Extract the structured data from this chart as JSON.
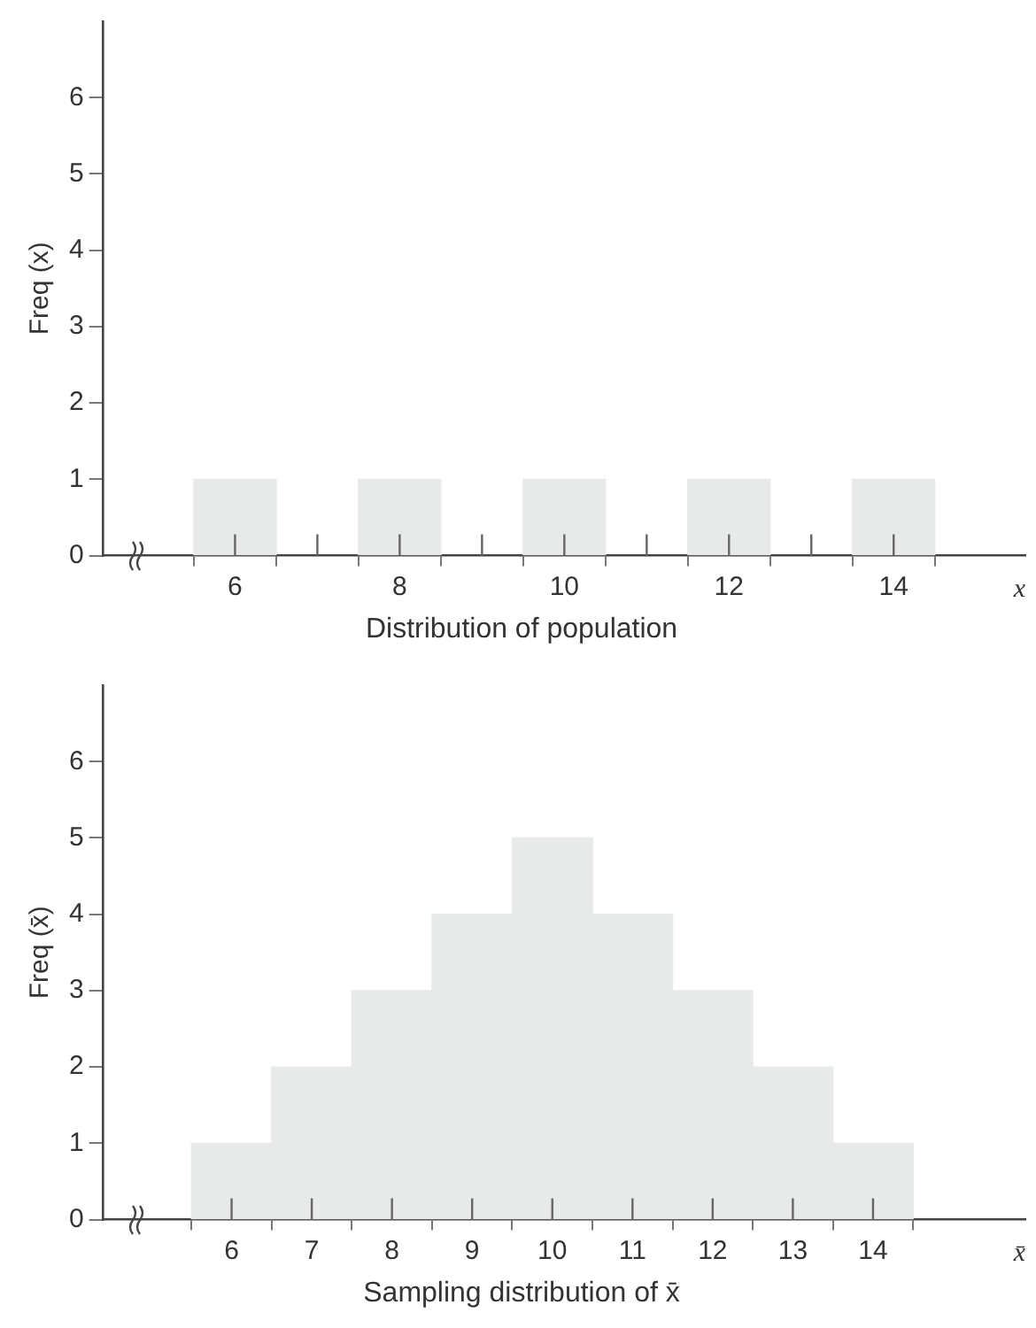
{
  "chart_data": [
    {
      "type": "bar",
      "title": "Distribution of population",
      "xlabel": "x",
      "ylabel": "Freq (x)",
      "x": [
        6,
        8,
        10,
        12,
        14
      ],
      "values": [
        1,
        1,
        1,
        1,
        1
      ],
      "color": "#e8eaea",
      "xlim": [
        4.4,
        15.6
      ],
      "xticks": [
        6,
        {
          "value": 7,
          "label": null
        },
        8,
        {
          "value": 9,
          "label": null
        },
        10,
        {
          "value": 11,
          "label": null
        },
        12,
        {
          "value": 13,
          "label": null
        },
        14
      ],
      "ylim": [
        0,
        7
      ],
      "yticks": [
        0,
        1,
        2,
        3,
        4,
        5,
        6
      ],
      "grid": false,
      "legend": false
    },
    {
      "type": "histogram",
      "title": "Sampling distribution of x̄",
      "xlabel": "x̄",
      "ylabel": "Freq (x̄)",
      "bins": [
        5.5,
        6.5,
        7.5,
        8.5,
        9.5,
        10.5,
        11.5,
        12.5,
        13.5,
        14.5
      ],
      "values": [
        1,
        2,
        3,
        4,
        5,
        4,
        3,
        2,
        1
      ],
      "color": "#e8eaea",
      "xlim": [
        4.4,
        15.9
      ],
      "xticks": [
        6,
        7,
        8,
        9,
        10,
        11,
        12,
        13,
        14
      ],
      "ylim": [
        0,
        7
      ],
      "yticks": [
        0,
        1,
        2,
        3,
        4,
        5,
        6
      ],
      "grid": false,
      "legend": false
    }
  ]
}
